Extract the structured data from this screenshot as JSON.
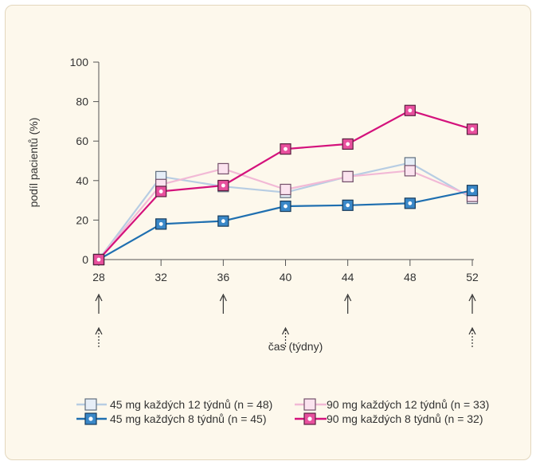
{
  "chart_data": {
    "type": "line",
    "title": "",
    "xlabel": "čas (týdny)",
    "ylabel": "podíl pacientů (%)",
    "xlim": [
      28,
      52
    ],
    "ylim": [
      0,
      100
    ],
    "x_ticks": [
      "28",
      "32",
      "36",
      "40",
      "44",
      "48",
      "52"
    ],
    "y_ticks": [
      "0",
      "20",
      "40",
      "60",
      "80",
      "100"
    ],
    "grid": false,
    "legend_position": "bottom",
    "arrows": {
      "solid_at_weeks": [
        28,
        36,
        44,
        52
      ],
      "dotted_at_weeks": [
        28,
        40,
        52
      ]
    },
    "series": [
      {
        "name": "45 mg každých 12 týdnů (n = 48)",
        "color": "#b7cde3",
        "marker_fill": "#e6eef7",
        "marker_border": "#5f6e7e",
        "marker": "square",
        "x": [
          28,
          32,
          36,
          40,
          44,
          48,
          52
        ],
        "y": [
          0,
          42,
          37,
          34,
          42,
          49,
          31
        ]
      },
      {
        "name": "45 mg každých 8 týdnů (n = 45)",
        "color": "#1f6fb0",
        "marker_fill": "#3a88c8",
        "marker_border": "#163a5a",
        "marker": "square-dot",
        "x": [
          28,
          32,
          36,
          40,
          44,
          48,
          52
        ],
        "y": [
          0,
          18,
          19.5,
          27,
          27.5,
          28.5,
          35
        ]
      },
      {
        "name": "90 mg každých 12 týdnů (n = 33)",
        "color": "#f2b9d6",
        "marker_fill": "#fbe3ef",
        "marker_border": "#74506a",
        "marker": "square",
        "x": [
          28,
          32,
          36,
          40,
          44,
          48,
          52
        ],
        "y": [
          0,
          38,
          46,
          35.5,
          42,
          45,
          32
        ]
      },
      {
        "name": "90 mg každých 8 týdnů (n = 32)",
        "color": "#d4127c",
        "marker_fill": "#e8509e",
        "marker_border": "#5a1f3f",
        "marker": "square-dot",
        "x": [
          28,
          32,
          36,
          40,
          44,
          48,
          52
        ],
        "y": [
          0,
          34.5,
          37.5,
          56,
          58.5,
          75.5,
          66
        ]
      }
    ]
  }
}
